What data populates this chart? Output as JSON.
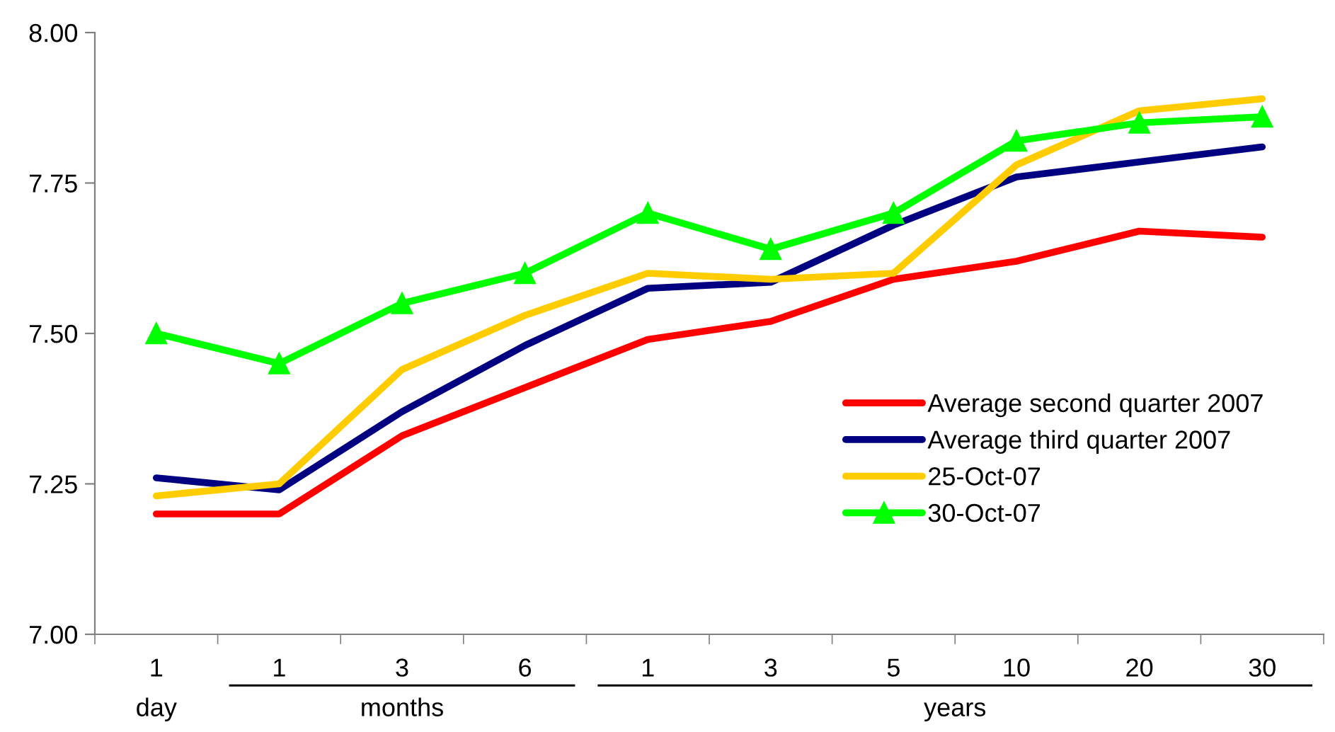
{
  "chart_data": {
    "type": "line",
    "categories": [
      "1",
      "1",
      "3",
      "6",
      "1",
      "3",
      "5",
      "10",
      "20",
      "30"
    ],
    "ylim": [
      7.0,
      8.0
    ],
    "yticks": [
      {
        "value": 7.0,
        "label": "7.00"
      },
      {
        "value": 7.25,
        "label": "7.25"
      },
      {
        "value": 7.5,
        "label": "7.50"
      },
      {
        "value": 7.75,
        "label": "7.75"
      },
      {
        "value": 8.0,
        "label": "8.00"
      }
    ],
    "series": [
      {
        "name": "Average second quarter 2007",
        "color": "#ff0000",
        "marker": "none",
        "values": [
          7.2,
          7.2,
          7.33,
          7.41,
          7.49,
          7.52,
          7.59,
          7.62,
          7.67,
          7.66
        ]
      },
      {
        "name": "Average third quarter 2007",
        "color": "#000080",
        "marker": "none",
        "values": [
          7.26,
          7.24,
          7.37,
          7.48,
          7.575,
          7.585,
          7.68,
          7.76,
          7.785,
          7.81
        ]
      },
      {
        "name": "25-Oct-07",
        "color": "#ffcc00",
        "marker": "none",
        "values": [
          7.23,
          7.25,
          7.44,
          7.53,
          7.6,
          7.59,
          7.6,
          7.78,
          7.87,
          7.89
        ]
      },
      {
        "name": "30-Oct-07",
        "color": "#00ff00",
        "marker": "triangle",
        "values": [
          7.5,
          7.45,
          7.55,
          7.6,
          7.7,
          7.64,
          7.7,
          7.82,
          7.85,
          7.86
        ]
      }
    ],
    "annotations": [
      "day",
      "months",
      "years"
    ],
    "legend": "lower right",
    "grid": false,
    "line_style": "solid"
  }
}
